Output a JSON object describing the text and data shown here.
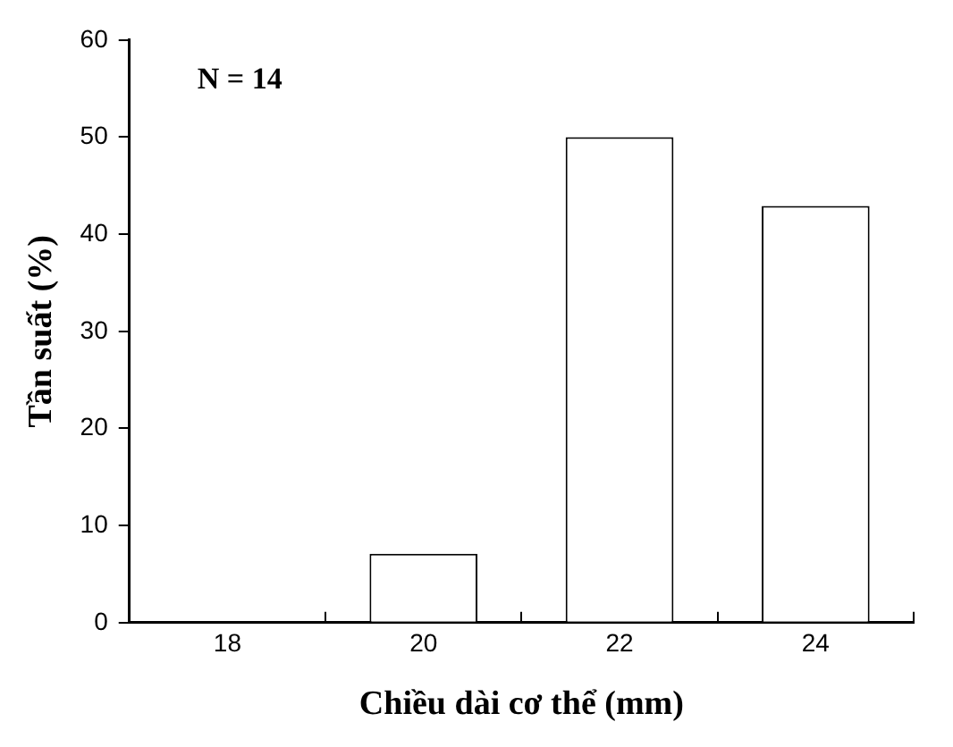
{
  "chart_data": {
    "type": "bar",
    "xlabel": "Chiều dài cơ thể (mm)",
    "ylabel": "Tần suất (%)",
    "categories": [
      "18",
      "20",
      "22",
      "24"
    ],
    "values": [
      0,
      7.1,
      50,
      42.9
    ],
    "color": "#ffffff",
    "ylim": [
      0,
      60
    ],
    "yticks": [
      0,
      10,
      20,
      30,
      40,
      50,
      60
    ],
    "grid": false,
    "legend": false,
    "annotations": [
      "N = 14"
    ]
  }
}
